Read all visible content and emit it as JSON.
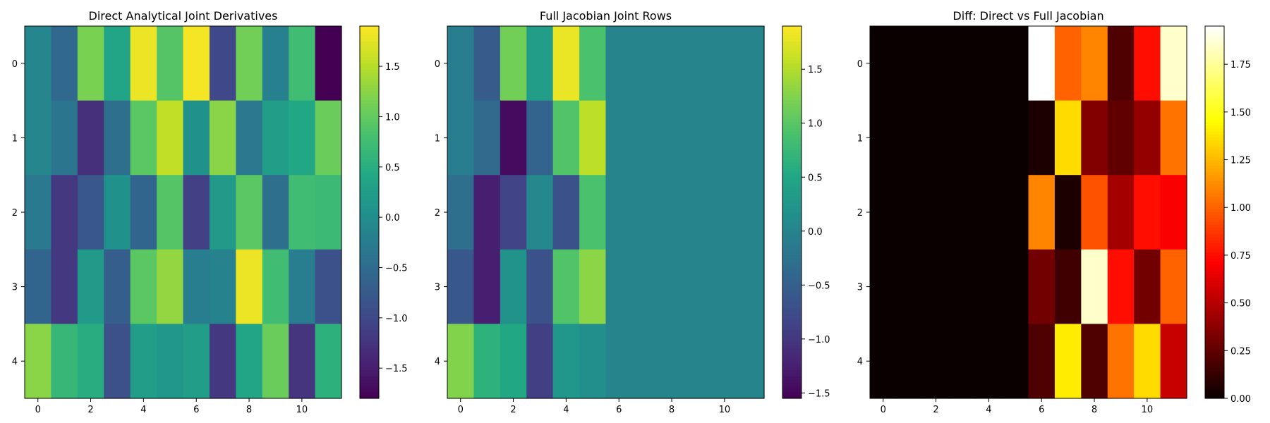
{
  "chart_data": [
    {
      "type": "heatmap",
      "title": "Direct Analytical Joint Derivatives",
      "colormap": "viridis",
      "vmin": -1.8,
      "vmax": 1.9,
      "x_ticks": [
        "0",
        "2",
        "4",
        "6",
        "8",
        "10"
      ],
      "y_ticks": [
        "0",
        "1",
        "2",
        "3",
        "4"
      ],
      "colorbar_ticks": [
        "1.5",
        "1.0",
        "0.5",
        "0.0",
        "−0.5",
        "−1.0",
        "−1.5"
      ],
      "values": [
        [
          -0.1,
          -0.55,
          1.15,
          0.35,
          1.8,
          0.9,
          1.85,
          -1.0,
          1.1,
          -0.2,
          0.75,
          -1.8
        ],
        [
          -0.1,
          -0.35,
          -1.3,
          -0.45,
          0.95,
          1.55,
          0.05,
          1.25,
          -0.3,
          0.25,
          0.4,
          1.05
        ],
        [
          -0.3,
          -1.2,
          -0.8,
          0.05,
          -0.6,
          0.9,
          -1.1,
          0.2,
          0.95,
          -0.45,
          0.75,
          0.7
        ],
        [
          -0.6,
          -1.2,
          0.2,
          -0.7,
          0.95,
          1.3,
          -0.25,
          -0.15,
          1.8,
          0.75,
          -0.25,
          -0.9
        ],
        [
          1.25,
          0.65,
          0.5,
          -0.9,
          0.25,
          0.15,
          0.25,
          -1.2,
          0.35,
          1.05,
          -1.25,
          0.55
        ]
      ]
    },
    {
      "type": "heatmap",
      "title": "Full Jacobian Joint Rows",
      "colormap": "viridis",
      "vmin": -1.55,
      "vmax": 1.9,
      "x_ticks": [
        "0",
        "2",
        "4",
        "6",
        "8",
        "10"
      ],
      "y_ticks": [
        "0",
        "1",
        "2",
        "3",
        "4"
      ],
      "colorbar_ticks": [
        "1.5",
        "1.0",
        "0.5",
        "0.0",
        "−0.5",
        "−1.0",
        "−1.5"
      ],
      "values": [
        [
          -0.1,
          -0.55,
          1.15,
          0.35,
          1.8,
          0.9,
          0.0,
          0.0,
          0.0,
          0.0,
          0.0,
          0.0
        ],
        [
          -0.1,
          -0.35,
          -1.45,
          -0.45,
          0.95,
          1.55,
          0.0,
          0.0,
          0.0,
          0.0,
          0.0,
          0.0
        ],
        [
          -0.3,
          -1.25,
          -0.85,
          0.05,
          -0.7,
          0.9,
          0.0,
          0.0,
          0.0,
          0.0,
          0.0,
          0.0
        ],
        [
          -0.6,
          -1.25,
          0.2,
          -0.7,
          0.95,
          1.3,
          0.0,
          0.0,
          0.0,
          0.0,
          0.0,
          0.0
        ],
        [
          1.25,
          0.65,
          0.5,
          -0.9,
          0.25,
          0.15,
          0.0,
          0.0,
          0.0,
          0.0,
          0.0,
          0.0
        ]
      ]
    },
    {
      "type": "heatmap",
      "title": "Diff: Direct vs Full Jacobian",
      "colormap": "hot",
      "vmin": 0.0,
      "vmax": 1.95,
      "x_ticks": [
        "0",
        "2",
        "4",
        "6",
        "8",
        "10"
      ],
      "y_ticks": [
        "0",
        "1",
        "2",
        "3",
        "4"
      ],
      "colorbar_ticks": [
        "1.75",
        "1.50",
        "1.25",
        "1.00",
        "0.75",
        "0.50",
        "0.25",
        "0.00"
      ],
      "values": [
        [
          0,
          0,
          0,
          0,
          0,
          0,
          1.95,
          1.0,
          1.1,
          0.2,
          0.75,
          1.85
        ],
        [
          0,
          0,
          0,
          0,
          0,
          0,
          0.05,
          1.35,
          0.35,
          0.25,
          0.4,
          1.05
        ],
        [
          0,
          0,
          0,
          0,
          0,
          0,
          1.1,
          0.05,
          0.95,
          0.45,
          0.75,
          0.7
        ],
        [
          0,
          0,
          0,
          0,
          0,
          0,
          0.3,
          0.15,
          1.85,
          0.75,
          0.3,
          1.0
        ],
        [
          0,
          0,
          0,
          0,
          0,
          0,
          0.2,
          1.4,
          0.2,
          1.05,
          1.35,
          0.55
        ]
      ]
    }
  ]
}
